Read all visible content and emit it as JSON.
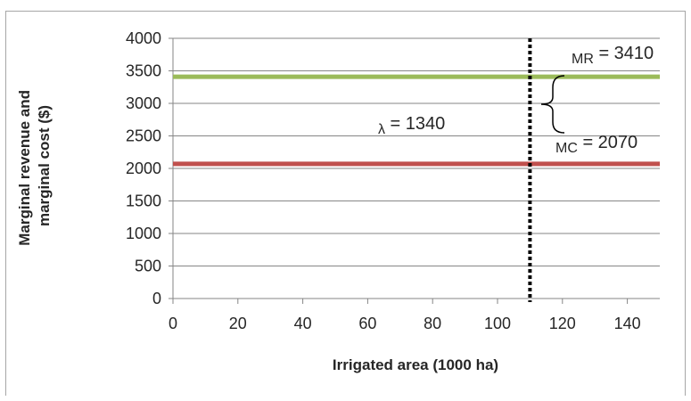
{
  "chart_data": {
    "type": "line",
    "xlabel": "Irrigated area (1000 ha)",
    "ylabel_lines": [
      "Marginal revenue and",
      "marginal cost ($)"
    ],
    "xlim": [
      0,
      150
    ],
    "ylim": [
      0,
      4000
    ],
    "x_ticks": [
      0,
      20,
      40,
      60,
      80,
      100,
      120,
      140
    ],
    "y_ticks": [
      0,
      500,
      1000,
      1500,
      2000,
      2500,
      3000,
      3500,
      4000
    ],
    "grid": true,
    "legend": "none",
    "series": [
      {
        "name": "MR",
        "x": [
          0,
          150
        ],
        "y": [
          3410,
          3410
        ],
        "color": "#9bbb59"
      },
      {
        "name": "MC",
        "x": [
          0,
          150
        ],
        "y": [
          2070,
          2070
        ],
        "color": "#c0504d"
      }
    ],
    "vertical_line": {
      "x": 110,
      "style": "dotted",
      "color": "#000000"
    },
    "annotations": {
      "mr_label": {
        "sub": "MR",
        "text": " = 3410"
      },
      "mc_label": {
        "sub": "MC",
        "text": " = 2070"
      },
      "lambda_label": {
        "sub": "λ",
        "text": " = 1340"
      }
    }
  }
}
